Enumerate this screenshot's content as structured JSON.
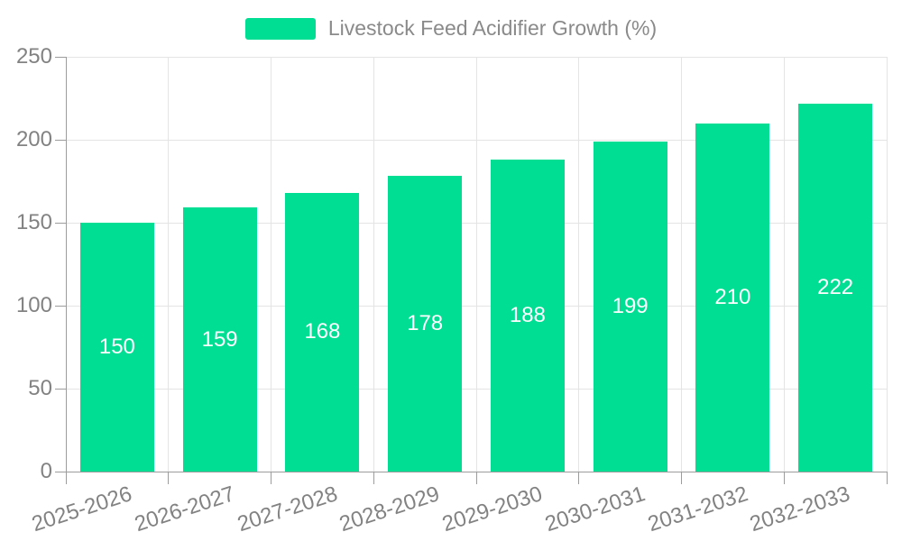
{
  "chart_data": {
    "type": "bar",
    "title": "",
    "series_name": "Livestock Feed Acidifier Growth (%)",
    "categories": [
      "2025-2026",
      "2026-2027",
      "2027-2028",
      "2028-2029",
      "2029-2030",
      "2030-2031",
      "2031-2032",
      "2032-2033"
    ],
    "values": [
      150,
      159,
      168,
      178,
      188,
      199,
      210,
      222
    ],
    "ylim": [
      0,
      250
    ],
    "yticks": [
      0,
      50,
      100,
      150,
      200,
      250
    ],
    "grid": true,
    "legend_position": "top",
    "value_label_position": "inside-center",
    "x_label_rotation_deg": -18,
    "colors": {
      "bar": "#00DE94",
      "axis_line": "#9c9c9c",
      "grid_line": "#e4e4e4",
      "axis_text": "#828282",
      "legend_text": "#8a8a8a",
      "value_text": "#ffffff",
      "background": "#ffffff"
    }
  }
}
